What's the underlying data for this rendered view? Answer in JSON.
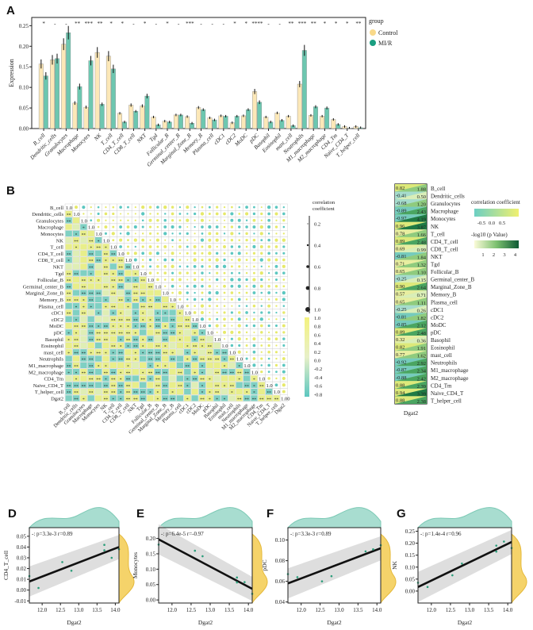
{
  "colors": {
    "control": "#fce8b8",
    "mir": "#6dc7b0",
    "teal": "#a8ddd0",
    "yellow": "#f5d36a",
    "dark": "#0e5a35"
  },
  "chart_data": [
    {
      "panel": "A",
      "type": "bar",
      "ylabel": "Expression",
      "ylim": [
        0,
        0.27
      ],
      "yticks": [
        "0.00",
        "0.05",
        "0.10",
        "0.15",
        "0.20",
        "0.25"
      ],
      "legend": {
        "title": "group",
        "entries": [
          "Control",
          "MI/R"
        ],
        "placement": "right"
      },
      "categories": [
        "B_cell",
        "Dendritic_cells",
        "Granulocytes",
        "Macrophage",
        "Monocytes",
        "NK",
        "T_cell",
        "CD4_T_cell",
        "CD8_T_cell",
        "NKT",
        "Tgd",
        "Follicular_B",
        "Germinal_center_B",
        "Marginal_Zone_B",
        "Memory_B",
        "Plasma_cell",
        "cDC1",
        "cDC2",
        "MoDC",
        "pDC",
        "Basophil",
        "Eosinophil",
        "mast_cell",
        "Neutrophils",
        "M1_macrophage",
        "M2_macrophage",
        "CD4_Tm",
        "Naive_CD4_T",
        "T_helper_cell"
      ],
      "series": [
        {
          "name": "Control",
          "values": [
            0.157,
            0.167,
            0.205,
            0.062,
            0.052,
            0.185,
            0.176,
            0.037,
            0.057,
            0.055,
            0.028,
            0.018,
            0.033,
            0.029,
            0.051,
            0.026,
            0.031,
            0.014,
            0.031,
            0.09,
            0.028,
            0.038,
            0.03,
            0.108,
            0.032,
            0.03,
            0.022,
            0.005,
            0.005
          ]
        },
        {
          "name": "MI/R",
          "values": [
            0.128,
            0.17,
            0.233,
            0.102,
            0.165,
            0.059,
            0.145,
            0.016,
            0.042,
            0.079,
            0.009,
            0.016,
            0.033,
            0.013,
            0.046,
            0.021,
            0.03,
            0.03,
            0.046,
            0.064,
            0.016,
            0.02,
            0.007,
            0.19,
            0.053,
            0.05,
            0.01,
            0.001,
            0.002
          ]
        }
      ],
      "significance": [
        "*",
        "-",
        "-",
        "**",
        "***",
        "**",
        "*",
        "*",
        "-",
        "*",
        "-",
        "*",
        "-",
        "***",
        "-",
        "-",
        "-",
        "*",
        "*",
        "****",
        "-",
        "-",
        "**",
        "***",
        "**",
        "*",
        "*",
        "*",
        "**"
      ]
    },
    {
      "panel": "B",
      "type": "heatmap",
      "labels": [
        "B_cell",
        "Dendritic_cells",
        "Granulocytes",
        "Macrophage",
        "Monocytes",
        "NK",
        "T_cell",
        "CD4_T_cell",
        "CD8_T_cell",
        "NKT",
        "Tgd",
        "Follicular_B",
        "Germinal_center_B",
        "Marginal_Zone_B",
        "Memory_B",
        "Plasma_cell",
        "cDC1",
        "cDC2",
        "MoDC",
        "pDC",
        "Basophil",
        "Eosinophil",
        "mast_cell",
        "Neutrophils",
        "M1_macrophage",
        "M2_macrophage",
        "CD4_Tm",
        "Naive_CD4_T",
        "T_helper_cell",
        "Dgat2"
      ],
      "diagonal": "1.00",
      "legend_title": "correlation coefficient",
      "size_ticks": [
        "0.2",
        "0.4",
        "0.6",
        "0.8",
        "1.0"
      ],
      "color_ticks": [
        "1.0",
        "0.8",
        "0.6",
        "0.4",
        "0.2",
        "0.0",
        "-0.2",
        "-0.4",
        "-0.6",
        "-0.8"
      ]
    },
    {
      "panel": "C",
      "type": "heatmap",
      "xlabel": "Dgat2",
      "rows": [
        "B_cell",
        "Dendritic_cells",
        "Granulocytes",
        "Macrophage",
        "Monocytes",
        "NK",
        "T_cell",
        "CD4_T_cell",
        "CD8_T_cell",
        "NKT",
        "Tgd",
        "Follicular_B",
        "Germinal_center_B",
        "Marginal_Zone_B",
        "Memory_B",
        "Plasma_cell",
        "cDC1",
        "cDC2",
        "MoDC",
        "pDC",
        "Basophil",
        "Eosinophil",
        "mast_cell",
        "Neutrophils",
        "M1_macrophage",
        "M2_macrophage",
        "CD4_Tm",
        "Naive_CD4_T",
        "T_helper_cell"
      ],
      "r": [
        "0.82",
        "-0.41",
        "-0.68",
        "-0.89",
        "-0.97",
        "0.96",
        "0.78",
        "0.89",
        "0.69",
        "-0.81",
        "0.71",
        "0.65",
        "-0.25",
        "0.90",
        "0.57",
        "0.65",
        "-0.25",
        "-0.81",
        "-0.85",
        "0.89",
        "0.32",
        "0.82",
        "0.77",
        "-0.92",
        "-0.87",
        "-0.88",
        "0.88",
        "0.94",
        "0.88"
      ],
      "neglog10p": [
        "1.88",
        "0.50",
        "1.20",
        "2.43",
        "4.19",
        "3.87",
        "1.66",
        "2.48",
        "0.99",
        "1.84",
        "1.32",
        "1.10",
        "0.15",
        "2.64",
        "0.71",
        "1.11",
        "0.26",
        "1.82",
        "2.12",
        "2.48",
        "0.36",
        "1.91",
        "1.62",
        "2.92",
        "2.34",
        "2.42",
        "2.39",
        "3.39",
        "2.38"
      ],
      "legend": {
        "r_title": "correlation coefficient",
        "r_ticks": [
          "-0.5",
          "0.0",
          "0.5"
        ],
        "p_title": "-log10 (p Value)",
        "p_ticks": [
          "1",
          "2",
          "3",
          "4"
        ]
      }
    },
    {
      "panel": "D",
      "type": "scatter",
      "xlabel": "Dgat2",
      "ylabel": "CD4_T_cell",
      "annotation": "-: p=3.3e-3  r=0.89",
      "xlim": [
        11.65,
        14.1
      ],
      "ylim": [
        -0.012,
        0.058
      ],
      "xticks": [
        "12.0",
        "12.5",
        "13.0",
        "13.5",
        "14.0"
      ],
      "yticks": [
        "-0.01",
        "0.00",
        "0.01",
        "0.02",
        "0.03",
        "0.04",
        "0.05"
      ],
      "x": [
        11.65,
        11.9,
        12.55,
        12.8,
        13.7,
        13.7,
        13.9,
        14.1
      ],
      "y": [
        0.013,
        0.002,
        0.026,
        0.018,
        0.042,
        0.037,
        0.03,
        0.038
      ],
      "fit": [
        0.008,
        0.04
      ]
    },
    {
      "panel": "E",
      "type": "scatter",
      "xlabel": "Dgat2",
      "ylabel": "Monocytes",
      "annotation": "-: p=6.4e-5  r=-0.97",
      "xlim": [
        11.65,
        14.1
      ],
      "ylim": [
        -0.01,
        0.235
      ],
      "xticks": [
        "12.0",
        "12.5",
        "13.0",
        "13.5",
        "14.0"
      ],
      "yticks": [
        "0.00",
        "0.05",
        "0.10",
        "0.15",
        "0.20"
      ],
      "x": [
        11.65,
        12.6,
        12.8,
        13.7,
        13.7,
        13.9,
        14.1
      ],
      "y": [
        0.18,
        0.16,
        0.142,
        0.073,
        0.057,
        0.058,
        0.02
      ],
      "fit": [
        0.197,
        0.036
      ]
    },
    {
      "panel": "F",
      "type": "scatter",
      "xlabel": "Dgat2",
      "ylabel": "pDC",
      "annotation": "-: p=3.3e-3  r=0.89",
      "xlim": [
        11.65,
        14.1
      ],
      "ylim": [
        0.039,
        0.112
      ],
      "xticks": [
        "12.0",
        "12.5",
        "13.0",
        "13.5",
        "14.0"
      ],
      "yticks": [
        "0.04",
        "0.06",
        "0.08",
        "0.10"
      ],
      "x": [
        11.65,
        11.9,
        12.55,
        12.8,
        13.7,
        13.9,
        14.1
      ],
      "y": [
        0.067,
        0.064,
        0.06,
        0.065,
        0.089,
        0.091,
        0.095
      ],
      "fit": [
        0.058,
        0.092
      ]
    },
    {
      "panel": "G",
      "type": "scatter",
      "xlabel": "Dgat2",
      "ylabel": "NK",
      "annotation": "-: p=1.4e-4  r=0.96",
      "xlim": [
        11.65,
        14.1
      ],
      "ylim": [
        -0.05,
        0.265
      ],
      "xticks": [
        "12.0",
        "12.5",
        "13.0",
        "13.5",
        "14.0"
      ],
      "yticks": [
        "0.00",
        "0.05",
        "0.10",
        "0.15",
        "0.20",
        "0.25"
      ],
      "x": [
        11.65,
        11.9,
        12.55,
        12.8,
        13.7,
        13.7,
        13.9,
        14.1
      ],
      "y": [
        0.035,
        0.017,
        0.066,
        0.115,
        0.165,
        0.19,
        0.207,
        0.18
      ],
      "fit": [
        0.017,
        0.205
      ]
    }
  ]
}
